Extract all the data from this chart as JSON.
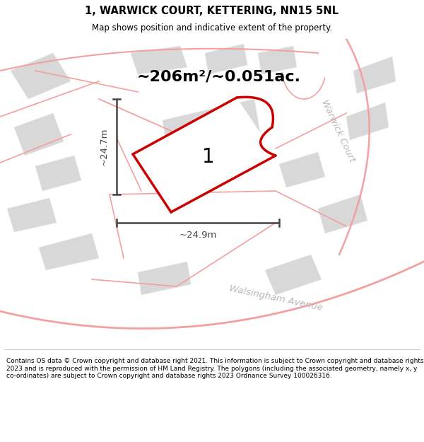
{
  "title_line1": "1, WARWICK COURT, KETTERING, NN15 5NL",
  "title_line2": "Map shows position and indicative extent of the property.",
  "area_label": "~206m²/~0.051ac.",
  "plot_number": "1",
  "dim_vertical": "~24.7m",
  "dim_horizontal": "~24.9m",
  "street_label1": "Warwick Court",
  "street_label2": "Walsingham Avenue",
  "footer_text": "Contains OS data © Crown copyright and database right 2021. This information is subject to Crown copyright and database rights 2023 and is reproduced with the permission of HM Land Registry. The polygons (including the associated geometry, namely x, y co-ordinates) are subject to Crown copyright and database rights 2023 Ordnance Survey 100026316.",
  "map_bg": "#f2f2f2",
  "building_color": "#d8d8d8",
  "road_stroke": "#f4a0a0",
  "plot_stroke": "#cc0000",
  "dim_color": "#444444",
  "street_text_color": "#b8b8b8",
  "title_bg": "#ffffff",
  "footer_bg": "#ffffff"
}
